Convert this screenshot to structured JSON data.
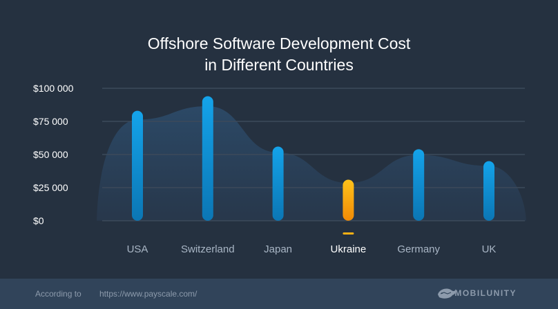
{
  "chart_data": {
    "type": "bar",
    "title_line1": "Offshore Software Development Cost",
    "title_line2": "in Different Countries",
    "categories": [
      "USA",
      "Switzerland",
      "Japan",
      "Ukraine",
      "Germany",
      "UK"
    ],
    "values": [
      83000,
      94000,
      56000,
      31000,
      54000,
      45000
    ],
    "highlight": "Ukraine",
    "ylim": [
      0,
      100000
    ],
    "yticks": [
      0,
      25000,
      50000,
      75000,
      100000
    ],
    "ytick_labels": [
      "$0",
      "$25 000",
      "$50 000",
      "$75 000",
      "$100 000"
    ],
    "xlabel": "",
    "ylabel": "",
    "grid": true,
    "colors": {
      "bar": "#14a3ea",
      "bar_bottom": "#0b76b4",
      "highlight": "#ffb114",
      "highlight_bottom": "#f08a06",
      "area": "#2c4a68",
      "grid": "#3c4a5b"
    }
  },
  "footer": {
    "according_label": "According to",
    "source_url": "https://www.payscale.com/",
    "brand": "MOBILUNITY"
  },
  "colors": {
    "background": "#253140",
    "footer_bg": "#31445a",
    "footer_text": "#8d9bac"
  }
}
